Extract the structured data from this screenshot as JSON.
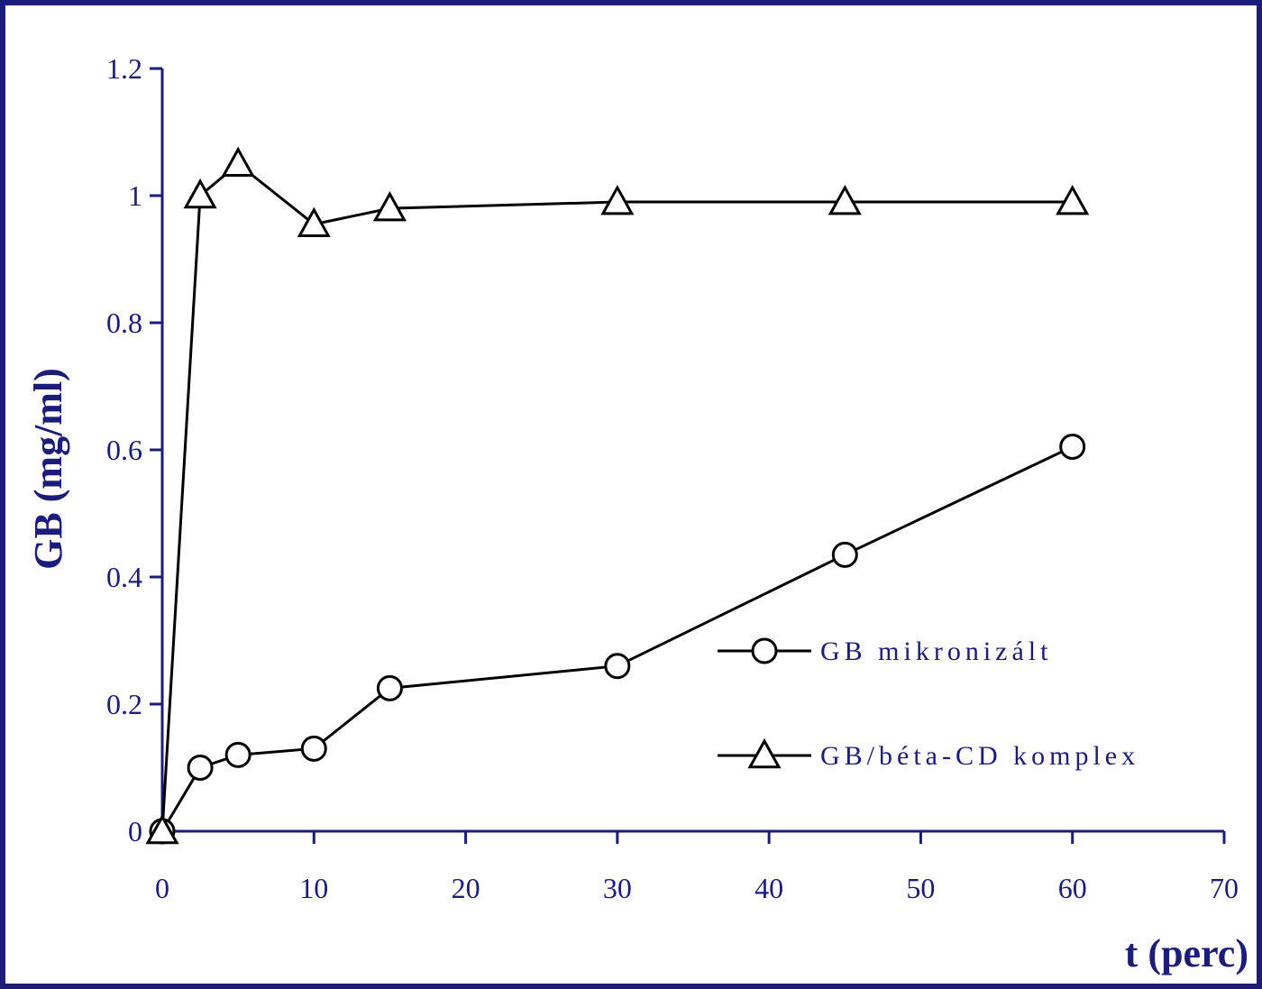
{
  "chart_data": {
    "type": "line",
    "title": "",
    "xlabel": "t (perc)",
    "ylabel": "GB (mg/ml)",
    "xlim": [
      0,
      70
    ],
    "ylim": [
      0,
      1.2
    ],
    "xticks": [
      0,
      10,
      20,
      30,
      40,
      50,
      60,
      70
    ],
    "yticks": [
      0,
      0.2,
      0.4,
      0.6,
      0.8,
      1,
      1.2
    ],
    "xtick_labels": [
      "0",
      "10",
      "20",
      "30",
      "40",
      "50",
      "60",
      "70"
    ],
    "ytick_labels": [
      "0",
      "0.2",
      "0.4",
      "0.6",
      "0.8",
      "1",
      "1.2"
    ],
    "grid": false,
    "legend_position": "center-right",
    "colors": {
      "axis": "#1c1c7a",
      "series": "#000000",
      "frame": "#1c1c7a"
    },
    "series": [
      {
        "name": "GB mikronizált",
        "marker": "circle",
        "x": [
          0,
          2.5,
          5,
          10,
          15,
          30,
          45,
          60
        ],
        "y": [
          0.0,
          0.1,
          0.12,
          0.13,
          0.225,
          0.26,
          0.435,
          0.605
        ]
      },
      {
        "name": "GB/béta-CD komplex",
        "marker": "triangle",
        "x": [
          0,
          2.5,
          5,
          10,
          15,
          30,
          45,
          60
        ],
        "y": [
          0.0,
          1.0,
          1.05,
          0.955,
          0.98,
          0.99,
          0.99,
          0.99
        ]
      }
    ]
  }
}
